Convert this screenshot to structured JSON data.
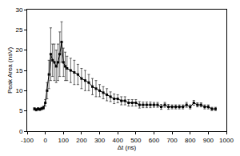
{
  "chart_data": {
    "type": "line",
    "x_label": "Δt (ns)",
    "y_label": "Peak Area (nsV)",
    "color": "#000000",
    "marker": "square",
    "line_style": "solid",
    "grid": false,
    "x": [
      -60,
      -50,
      -40,
      -30,
      -20,
      -10,
      0,
      10,
      20,
      30,
      40,
      50,
      60,
      70,
      80,
      90,
      100,
      110,
      120,
      140,
      160,
      180,
      200,
      220,
      240,
      260,
      280,
      300,
      320,
      340,
      360,
      380,
      400,
      420,
      440,
      460,
      480,
      500,
      520,
      540,
      560,
      580,
      600,
      620,
      640,
      660,
      680,
      700,
      720,
      740,
      760,
      780,
      800,
      820,
      840,
      860,
      880,
      900,
      920,
      940
    ],
    "values": [
      5.5,
      5.3,
      5.5,
      5.4,
      5.6,
      5.8,
      7.0,
      10.0,
      14.0,
      19.0,
      17.5,
      17.0,
      16.0,
      17.0,
      19.0,
      22.0,
      17.0,
      16.0,
      15.5,
      15.0,
      14.5,
      14.0,
      13.0,
      12.5,
      12.0,
      11.0,
      10.5,
      10.0,
      9.5,
      9.0,
      8.5,
      8.0,
      8.0,
      7.5,
      7.5,
      7.0,
      7.0,
      7.0,
      6.5,
      6.5,
      6.5,
      6.5,
      6.5,
      6.5,
      6.0,
      6.5,
      6.0,
      6.0,
      6.0,
      6.0,
      6.0,
      6.5,
      6.0,
      7.0,
      6.5,
      6.5,
      6.0,
      6.0,
      5.5,
      5.5
    ],
    "errors": [
      0.3,
      0.3,
      0.3,
      0.3,
      0.3,
      0.4,
      0.8,
      2.0,
      3.5,
      6.5,
      4.0,
      4.5,
      4.0,
      4.5,
      5.5,
      5.0,
      3.5,
      3.5,
      3.0,
      3.0,
      3.0,
      2.5,
      2.5,
      2.5,
      2.0,
      2.0,
      2.0,
      1.5,
      1.5,
      1.5,
      1.2,
      1.2,
      1.0,
      1.0,
      1.0,
      0.8,
      0.8,
      0.8,
      0.8,
      0.7,
      0.7,
      0.7,
      0.6,
      0.6,
      0.6,
      0.6,
      0.6,
      0.5,
      0.5,
      0.5,
      0.5,
      0.6,
      0.5,
      0.6,
      0.5,
      0.5,
      0.5,
      0.5,
      0.4,
      0.4
    ],
    "xlim": [
      -100,
      1000
    ],
    "xticks": [
      -100,
      0,
      100,
      200,
      300,
      400,
      500,
      600,
      700,
      800,
      900,
      1000
    ],
    "ylim": [
      0,
      30
    ],
    "yticks": [
      0,
      5,
      10,
      15,
      20,
      25,
      30
    ]
  }
}
